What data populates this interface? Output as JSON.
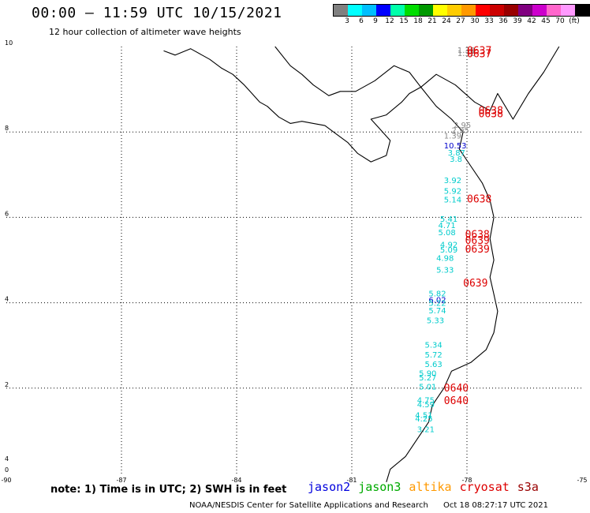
{
  "title": "00:00 – 11:59 UTC 10/15/2021",
  "subtitle": "12 hour collection of altimeter wave heights",
  "colorbar": {
    "colors": [
      "#808080",
      "#00ffff",
      "#00bfff",
      "#0000ff",
      "#00ffaa",
      "#00dd00",
      "#009900",
      "#ffff00",
      "#ffcc00",
      "#ff9900",
      "#ff0000",
      "#cc0000",
      "#990000",
      "#800080",
      "#cc00cc",
      "#ff66cc",
      "#ff99ff",
      "#000000"
    ],
    "labels": [
      "3",
      "6",
      "9",
      "12",
      "15",
      "18",
      "21",
      "24",
      "27",
      "30",
      "33",
      "36",
      "39",
      "42",
      "45",
      "70",
      "(ft)"
    ]
  },
  "map": {
    "lon_min": -90,
    "lon_max": -75,
    "lat_min": 0,
    "lat_max": 10,
    "lon_ticks": [
      {
        "v": -90,
        "t": "-90"
      },
      {
        "v": -87,
        "t": "-87"
      },
      {
        "v": -84,
        "t": "-84"
      },
      {
        "v": -81,
        "t": "-81"
      },
      {
        "v": -78,
        "t": "-78"
      },
      {
        "v": -75,
        "t": "-75"
      }
    ],
    "lat_ticks": [
      {
        "v": 0,
        "t": "0"
      },
      {
        "v": 2,
        "t": "2"
      },
      {
        "v": 4,
        "t": "4"
      },
      {
        "v": 6,
        "t": "6"
      },
      {
        "v": 8,
        "t": "8"
      },
      {
        "v": 10,
        "t": "10"
      }
    ],
    "lat_minor_label": {
      "v": 0.3,
      "t": "4"
    },
    "coastline": [
      [
        [
          -85.9,
          9.9
        ],
        [
          -85.6,
          9.8
        ],
        [
          -85.2,
          9.95
        ],
        [
          -84.9,
          9.8
        ],
        [
          -84.7,
          9.7
        ],
        [
          -84.4,
          9.5
        ],
        [
          -84.1,
          9.35
        ],
        [
          -83.8,
          9.1
        ],
        [
          -83.6,
          8.9
        ],
        [
          -83.4,
          8.7
        ],
        [
          -83.2,
          8.6
        ],
        [
          -82.9,
          8.35
        ],
        [
          -82.6,
          8.2
        ],
        [
          -82.3,
          8.25
        ],
        [
          -82.0,
          8.2
        ],
        [
          -81.7,
          8.15
        ],
        [
          -81.4,
          7.95
        ],
        [
          -81.1,
          7.75
        ],
        [
          -80.85,
          7.5
        ],
        [
          -80.5,
          7.3
        ],
        [
          -80.1,
          7.45
        ],
        [
          -80.0,
          7.8
        ],
        [
          -80.3,
          8.1
        ],
        [
          -80.5,
          8.3
        ],
        [
          -80.1,
          8.4
        ],
        [
          -79.7,
          8.7
        ],
        [
          -79.5,
          8.9
        ],
        [
          -79.2,
          9.05
        ],
        [
          -78.8,
          8.6
        ],
        [
          -78.4,
          8.3
        ],
        [
          -78.1,
          8.0
        ],
        [
          -78.2,
          7.6
        ],
        [
          -77.9,
          7.2
        ],
        [
          -77.6,
          6.8
        ],
        [
          -77.4,
          6.4
        ],
        [
          -77.3,
          6.0
        ],
        [
          -77.4,
          5.5
        ],
        [
          -77.3,
          5.0
        ],
        [
          -77.4,
          4.6
        ],
        [
          -77.3,
          4.2
        ],
        [
          -77.2,
          3.8
        ],
        [
          -77.3,
          3.3
        ],
        [
          -77.5,
          2.9
        ],
        [
          -77.9,
          2.6
        ],
        [
          -78.4,
          2.4
        ],
        [
          -78.6,
          2.0
        ],
        [
          -78.9,
          1.6
        ],
        [
          -79.0,
          1.2
        ],
        [
          -79.3,
          0.8
        ],
        [
          -79.6,
          0.4
        ],
        [
          -80.0,
          0.1
        ],
        [
          -80.1,
          -0.2
        ]
      ],
      [
        [
          -79.2,
          9.05
        ],
        [
          -79.5,
          9.4
        ],
        [
          -79.9,
          9.55
        ],
        [
          -80.4,
          9.2
        ],
        [
          -80.9,
          8.95
        ],
        [
          -81.3,
          8.95
        ],
        [
          -81.6,
          8.85
        ],
        [
          -82.0,
          9.1
        ],
        [
          -82.3,
          9.35
        ],
        [
          -82.6,
          9.55
        ],
        [
          -83.0,
          10.0
        ]
      ],
      [
        [
          -79.2,
          9.05
        ],
        [
          -78.8,
          9.35
        ],
        [
          -78.3,
          9.1
        ],
        [
          -77.8,
          8.7
        ],
        [
          -77.4,
          8.5
        ],
        [
          -77.2,
          8.9
        ],
        [
          -76.8,
          8.3
        ],
        [
          -76.4,
          8.9
        ],
        [
          -76.0,
          9.4
        ],
        [
          -75.6,
          10.0
        ]
      ]
    ]
  },
  "observations": [
    {
      "lon": -78.25,
      "lat": 9.85,
      "t": "1.38",
      "c": "#888888"
    },
    {
      "lon": -78.25,
      "lat": 9.78,
      "t": "1.32",
      "c": "#888888"
    },
    {
      "lon": -78.35,
      "lat": 8.1,
      "t": "2.95",
      "c": "#888888"
    },
    {
      "lon": -78.4,
      "lat": 7.98,
      "t": "2.95",
      "c": "#888888"
    },
    {
      "lon": -78.6,
      "lat": 7.85,
      "t": "1.39",
      "c": "#888888"
    },
    {
      "lon": -78.6,
      "lat": 7.62,
      "t": "10.53",
      "c": "#0000cc"
    },
    {
      "lon": -78.5,
      "lat": 7.45,
      "t": "3.87",
      "c": "#00cccc"
    },
    {
      "lon": -78.45,
      "lat": 7.3,
      "t": "3.8",
      "c": "#00cccc"
    },
    {
      "lon": -78.6,
      "lat": 6.8,
      "t": "3.92",
      "c": "#00cccc"
    },
    {
      "lon": -78.6,
      "lat": 6.55,
      "t": "5.92",
      "c": "#00cccc"
    },
    {
      "lon": -78.6,
      "lat": 6.35,
      "t": "5.14",
      "c": "#00cccc"
    },
    {
      "lon": -78.7,
      "lat": 5.9,
      "t": "5.41",
      "c": "#00cccc"
    },
    {
      "lon": -78.75,
      "lat": 5.75,
      "t": "4.71",
      "c": "#00cccc"
    },
    {
      "lon": -78.75,
      "lat": 5.58,
      "t": "5.08",
      "c": "#00cccc"
    },
    {
      "lon": -78.7,
      "lat": 5.3,
      "t": "4.92",
      "c": "#00cccc"
    },
    {
      "lon": -78.7,
      "lat": 5.18,
      "t": "5.09",
      "c": "#00cccc"
    },
    {
      "lon": -78.8,
      "lat": 4.98,
      "t": "4.98",
      "c": "#00cccc"
    },
    {
      "lon": -78.8,
      "lat": 4.7,
      "t": "5.33",
      "c": "#00cccc"
    },
    {
      "lon": -79.0,
      "lat": 4.15,
      "t": "5.82",
      "c": "#00cccc"
    },
    {
      "lon": -79.0,
      "lat": 4.0,
      "t": "6.02",
      "c": "#0000cc"
    },
    {
      "lon": -79.0,
      "lat": 3.93,
      "t": "5.22",
      "c": "#00cccc"
    },
    {
      "lon": -79.0,
      "lat": 3.75,
      "t": "5.74",
      "c": "#00cccc"
    },
    {
      "lon": -79.05,
      "lat": 3.52,
      "t": "5.33",
      "c": "#00cccc"
    },
    {
      "lon": -79.1,
      "lat": 2.95,
      "t": "5.34",
      "c": "#00cccc"
    },
    {
      "lon": -79.1,
      "lat": 2.72,
      "t": "5.72",
      "c": "#00cccc"
    },
    {
      "lon": -79.1,
      "lat": 2.5,
      "t": "5.63",
      "c": "#00cccc"
    },
    {
      "lon": -79.25,
      "lat": 2.28,
      "t": "5.90",
      "c": "#00cccc"
    },
    {
      "lon": -79.25,
      "lat": 2.18,
      "t": "5.27",
      "c": "#00cccc"
    },
    {
      "lon": -79.25,
      "lat": 1.97,
      "t": "5.01",
      "c": "#00cccc"
    },
    {
      "lon": -79.3,
      "lat": 1.65,
      "t": "4.75",
      "c": "#00cccc"
    },
    {
      "lon": -79.3,
      "lat": 1.55,
      "t": "4.59",
      "c": "#00cccc"
    },
    {
      "lon": -79.35,
      "lat": 1.3,
      "t": "4.51",
      "c": "#00cccc"
    },
    {
      "lon": -79.35,
      "lat": 1.22,
      "t": "4.25",
      "c": "#00cccc"
    },
    {
      "lon": -79.3,
      "lat": 0.97,
      "t": "3.21",
      "c": "#00cccc"
    }
  ],
  "time_labels": [
    {
      "lon": -78.0,
      "lat": 9.82,
      "t": "0637",
      "c": "#dd0000"
    },
    {
      "lon": -78.0,
      "lat": 9.75,
      "t": "0637",
      "c": "#dd0000"
    },
    {
      "lon": -77.7,
      "lat": 8.42,
      "t": "0638",
      "c": "#dd0000"
    },
    {
      "lon": -77.7,
      "lat": 8.35,
      "t": "0638",
      "c": "#dd0000"
    },
    {
      "lon": -78.0,
      "lat": 6.35,
      "t": "0638",
      "c": "#dd0000"
    },
    {
      "lon": -78.05,
      "lat": 5.52,
      "t": "0638",
      "c": "#dd0000"
    },
    {
      "lon": -78.05,
      "lat": 5.38,
      "t": "0639",
      "c": "#dd0000"
    },
    {
      "lon": -78.05,
      "lat": 5.18,
      "t": "0639",
      "c": "#dd0000"
    },
    {
      "lon": -78.1,
      "lat": 4.38,
      "t": "0639",
      "c": "#dd0000"
    },
    {
      "lon": -78.6,
      "lat": 1.92,
      "t": "0640",
      "c": "#dd0000"
    },
    {
      "lon": -78.6,
      "lat": 1.63,
      "t": "0640",
      "c": "#dd0000"
    }
  ],
  "note": "note:  1) Time is in UTC;  2) SWH is in feet",
  "satellites": [
    {
      "name": "jason2",
      "color": "#0000dd"
    },
    {
      "name": "jason3",
      "color": "#00aa00"
    },
    {
      "name": "altika",
      "color": "#ff9900"
    },
    {
      "name": "cryosat",
      "color": "#dd0000"
    },
    {
      "name": "s3a",
      "color": "#990000"
    }
  ],
  "credit": "NOAA/NESDIS Center for Satellite Applications and Research",
  "timestamp": "Oct 18 08:27:17 UTC 2021"
}
